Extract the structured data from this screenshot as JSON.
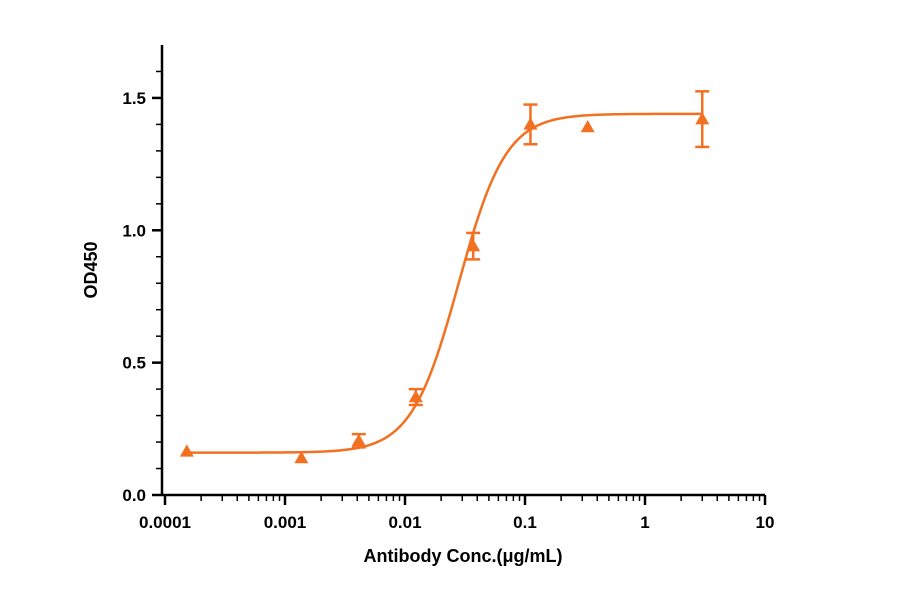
{
  "chart_data": {
    "type": "scatter",
    "x_scale": "log",
    "xlabel": "Antibody Conc.(μg/mL)",
    "ylabel": "OD450",
    "xlim": [
      0.0001,
      10
    ],
    "ylim": [
      0,
      1.7
    ],
    "x_ticks": [
      0.0001,
      0.001,
      0.01,
      0.1,
      1,
      10
    ],
    "x_tick_labels": [
      "0.0001",
      "0.001",
      "0.01",
      "0.1",
      "1",
      "10"
    ],
    "y_ticks": [
      0,
      0.5,
      1,
      1.5
    ],
    "y_tick_labels": [
      "0.0",
      "0.5",
      "1.0",
      "1.5"
    ],
    "grid": false,
    "color": "#f37021",
    "marker": "triangle",
    "series": [
      {
        "x": [
          0.000152,
          0.00137,
          0.00412,
          0.0123,
          0.037,
          0.111,
          0.333,
          3.0
        ],
        "y": [
          0.165,
          0.14,
          0.205,
          0.37,
          0.94,
          1.4,
          1.39,
          1.42
        ],
        "err": [
          0,
          0,
          0.025,
          0.03,
          0.05,
          0.075,
          0,
          0.105
        ]
      }
    ],
    "fit": {
      "model": "4PL",
      "bottom": 0.16,
      "top": 1.44,
      "ec50": 0.028,
      "hill": 2.2
    }
  }
}
